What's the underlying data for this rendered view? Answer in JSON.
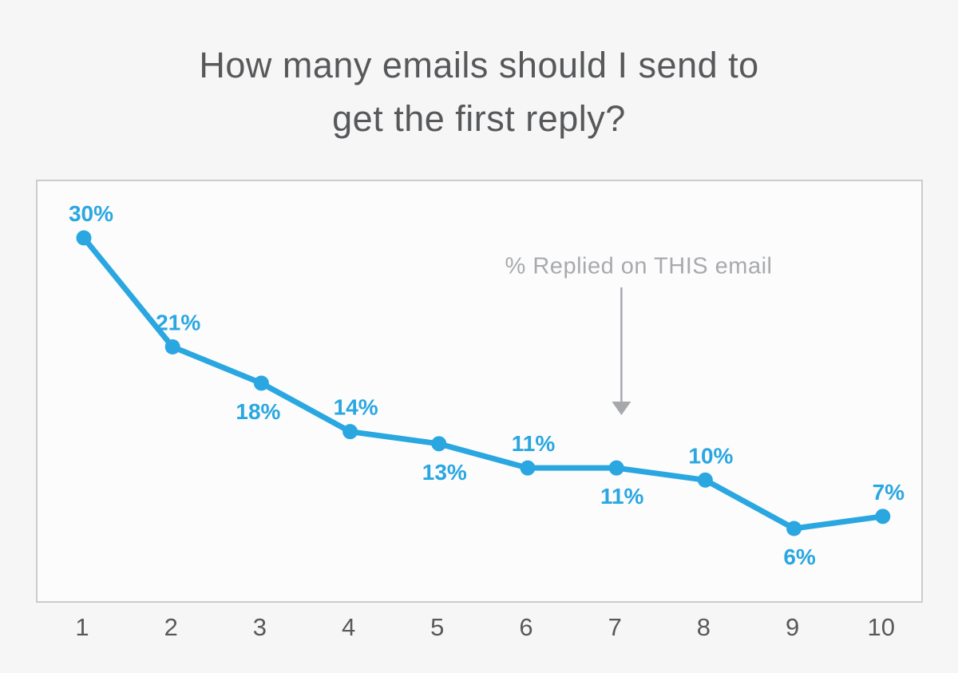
{
  "title": {
    "text": "How many emails should I send to get the first reply?",
    "line1": "How many emails should I send to",
    "line2": "get the first reply?",
    "color": "#57585a"
  },
  "chart_data": {
    "type": "line",
    "categories": [
      "1",
      "2",
      "3",
      "4",
      "5",
      "6",
      "7",
      "8",
      "9",
      "10"
    ],
    "values": [
      30,
      21,
      18,
      14,
      13,
      11,
      11,
      10,
      6,
      7
    ],
    "series": [
      {
        "name": "% Replied on THIS email",
        "values": [
          30,
          21,
          18,
          14,
          13,
          11,
          11,
          10,
          6,
          7
        ]
      }
    ],
    "data_labels": [
      "30%",
      "21%",
      "18%",
      "14%",
      "13%",
      "11%",
      "11%",
      "10%",
      "6%",
      "7%"
    ],
    "label_positions": [
      "above",
      "above",
      "below",
      "above",
      "below",
      "above",
      "below",
      "above",
      "below",
      "above"
    ],
    "title": "How many emails should I send to get the first reply?",
    "xlabel": "",
    "ylabel": "",
    "ylim": [
      0,
      35
    ],
    "grid": false,
    "legend_position": "none",
    "annotation": {
      "text": "% Replied on THIS email",
      "color": "#a8aaad",
      "arrow_color": "#a6a8ab",
      "points_to_x": 8
    },
    "colors": {
      "line": "#2aa7e0",
      "marker": "#2aa7e0",
      "data_label": "#2aa7e0",
      "axis_text": "#58595b",
      "plot_background": "#fcfcfd",
      "page_background": "#f6f6f7",
      "plot_border": "#cbcccd"
    }
  }
}
